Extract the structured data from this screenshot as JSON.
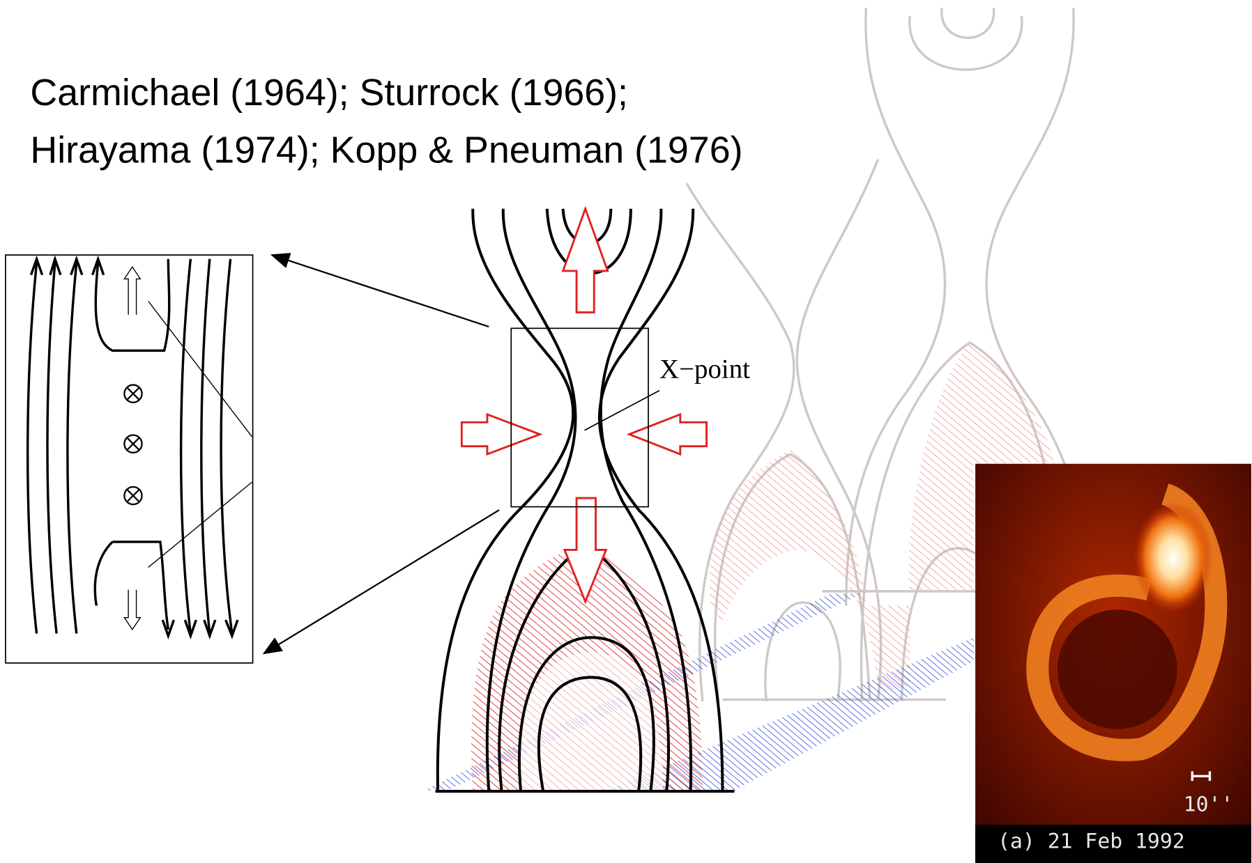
{
  "header": {
    "lines": [
      "Carmichael (1964); Sturrock (1966);",
      "Hirayama (1974); Kopp & Pneuman (1976)"
    ]
  },
  "diagram": {
    "label": "X−point"
  },
  "image": {
    "scale": "10''",
    "caption": "(a) 21 Feb 1992"
  }
}
